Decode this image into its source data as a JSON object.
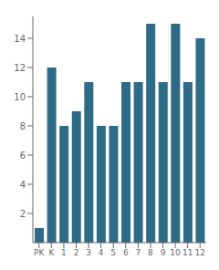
{
  "chart_data": {
    "type": "bar",
    "categories": [
      "PK",
      "K",
      "1",
      "2",
      "3",
      "4",
      "5",
      "6",
      "7",
      "8",
      "9",
      "10",
      "11",
      "12"
    ],
    "values": [
      1,
      12,
      8,
      9,
      11,
      8,
      8,
      11,
      11,
      15,
      11,
      15,
      11,
      14
    ],
    "color": "#2e6b87",
    "ylim": [
      0,
      15.5
    ],
    "yticks": [
      2,
      4,
      6,
      8,
      10,
      12,
      14
    ],
    "grid": false
  }
}
